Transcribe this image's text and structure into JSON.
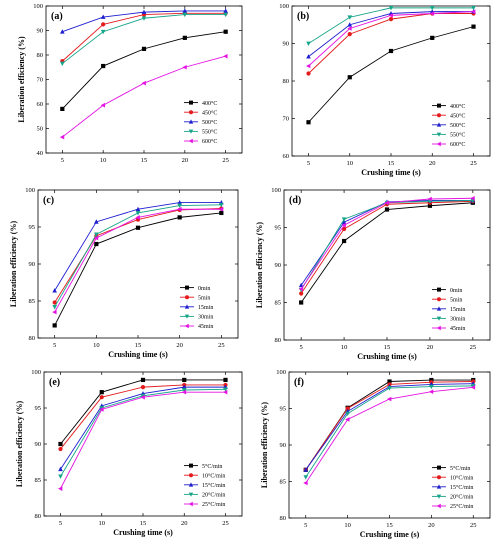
{
  "chart_data": [
    {
      "type": "line",
      "panel_label": "(a)",
      "xlabel": "",
      "ylabel": "Liberation efficiency (%)",
      "x": [
        5,
        10,
        15,
        20,
        25
      ],
      "xlim": [
        3,
        27
      ],
      "xticks": [
        5,
        10,
        15,
        20,
        25
      ],
      "ylim": [
        40,
        100
      ],
      "yticks": [
        40,
        50,
        60,
        70,
        80,
        90,
        100
      ],
      "legend_position": "bottom-right",
      "series": [
        {
          "name": "400°C",
          "color": "#000000",
          "marker": "square",
          "values": [
            58,
            75.5,
            82.5,
            87,
            89.5
          ]
        },
        {
          "name": "450°C",
          "color": "#e41a1c",
          "marker": "circle",
          "values": [
            77.5,
            92.5,
            96.5,
            97,
            97
          ]
        },
        {
          "name": "500°C",
          "color": "#1f1fd1",
          "marker": "triangle-up",
          "values": [
            89.5,
            95.5,
            97.5,
            98,
            98
          ]
        },
        {
          "name": "550°C",
          "color": "#17a589",
          "marker": "triangle-down",
          "values": [
            76.5,
            89.5,
            95,
            96.5,
            96.5
          ]
        },
        {
          "name": "600°C",
          "color": "#e413e4",
          "marker": "triangle-left",
          "values": [
            46.5,
            59.5,
            68.5,
            75,
            79.5
          ]
        }
      ]
    },
    {
      "type": "line",
      "panel_label": "(b)",
      "xlabel": "Crushing time (s)",
      "ylabel": "",
      "x": [
        5,
        10,
        15,
        20,
        25
      ],
      "xlim": [
        3,
        27
      ],
      "xticks": [
        5,
        10,
        15,
        20,
        25
      ],
      "ylim": [
        60,
        100
      ],
      "yticks": [
        60,
        70,
        80,
        90,
        100
      ],
      "legend_position": "bottom-right",
      "series": [
        {
          "name": "400°C",
          "color": "#000000",
          "marker": "square",
          "values": [
            69,
            81,
            88,
            91.5,
            94.5
          ]
        },
        {
          "name": "450°C",
          "color": "#e41a1c",
          "marker": "circle",
          "values": [
            82,
            92.5,
            96.5,
            98,
            98
          ]
        },
        {
          "name": "500°C",
          "color": "#1f1fd1",
          "marker": "triangle-up",
          "values": [
            86.5,
            95,
            98,
            98.5,
            98.5
          ]
        },
        {
          "name": "550°C",
          "color": "#17a589",
          "marker": "triangle-down",
          "values": [
            90,
            97,
            99.5,
            99.5,
            99.5
          ]
        },
        {
          "name": "600°C",
          "color": "#e413e4",
          "marker": "triangle-left",
          "values": [
            84,
            94,
            97.5,
            98,
            98.5
          ]
        }
      ]
    },
    {
      "type": "line",
      "panel_label": "(c)",
      "xlabel": "Crushing time (s)",
      "ylabel": "Liberation efficiency (%)",
      "x": [
        5,
        10,
        15,
        20,
        25
      ],
      "xlim": [
        3,
        27
      ],
      "xticks": [
        5,
        10,
        15,
        20,
        25
      ],
      "ylim": [
        80,
        100
      ],
      "yticks": [
        80,
        85,
        90,
        95,
        100
      ],
      "legend_position": "bottom-right",
      "series": [
        {
          "name": "0min",
          "color": "#000000",
          "marker": "square",
          "values": [
            81.7,
            92.7,
            94.9,
            96.3,
            96.9
          ]
        },
        {
          "name": "5min",
          "color": "#e41a1c",
          "marker": "circle",
          "values": [
            84.8,
            93.8,
            96.0,
            97.3,
            97.5
          ]
        },
        {
          "name": "15min",
          "color": "#1f1fd1",
          "marker": "triangle-up",
          "values": [
            86.4,
            95.7,
            97.4,
            98.3,
            98.3
          ]
        },
        {
          "name": "30min",
          "color": "#17a589",
          "marker": "triangle-down",
          "values": [
            84.2,
            94.0,
            96.9,
            97.9,
            98.0
          ]
        },
        {
          "name": "45min",
          "color": "#e413e4",
          "marker": "triangle-left",
          "values": [
            83.5,
            93.5,
            96.3,
            97.4,
            97.4
          ]
        }
      ]
    },
    {
      "type": "line",
      "panel_label": "(d)",
      "xlabel": "Crushing time (s)",
      "ylabel": "Liberation efficiency (%)",
      "x": [
        5,
        10,
        15,
        20,
        25
      ],
      "xlim": [
        3,
        27
      ],
      "xticks": [
        5,
        10,
        15,
        20,
        25
      ],
      "ylim": [
        80,
        100
      ],
      "yticks": [
        80,
        85,
        90,
        95,
        100
      ],
      "legend_position": "bottom-right",
      "series": [
        {
          "name": "0min",
          "color": "#000000",
          "marker": "square",
          "values": [
            85.0,
            93.2,
            97.4,
            97.9,
            98.3
          ]
        },
        {
          "name": "5min",
          "color": "#e41a1c",
          "marker": "circle",
          "values": [
            86.2,
            94.8,
            98.1,
            98.3,
            98.5
          ]
        },
        {
          "name": "15min",
          "color": "#1f1fd1",
          "marker": "triangle-up",
          "values": [
            87.3,
            95.7,
            98.4,
            98.6,
            98.6
          ]
        },
        {
          "name": "30min",
          "color": "#17a589",
          "marker": "triangle-down",
          "values": [
            86.7,
            96.1,
            98.3,
            98.5,
            98.6
          ]
        },
        {
          "name": "45min",
          "color": "#e413e4",
          "marker": "triangle-left",
          "values": [
            86.8,
            95.3,
            98.3,
            98.8,
            98.9
          ]
        }
      ]
    },
    {
      "type": "line",
      "panel_label": "(e)",
      "xlabel": "Crushing time (s)",
      "ylabel": "Liberation efficiency (%)",
      "x": [
        5,
        10,
        15,
        20,
        25
      ],
      "xlim": [
        3,
        27
      ],
      "xticks": [
        5,
        10,
        15,
        20,
        25
      ],
      "ylim": [
        80,
        100
      ],
      "yticks": [
        80,
        85,
        90,
        95,
        100
      ],
      "legend_position": "bottom-right",
      "series": [
        {
          "name": "5°C/min",
          "color": "#000000",
          "marker": "square",
          "values": [
            90.0,
            97.2,
            98.9,
            98.9,
            98.9
          ]
        },
        {
          "name": "10°C/min",
          "color": "#e41a1c",
          "marker": "circle",
          "values": [
            89.3,
            96.5,
            97.9,
            98.2,
            98.2
          ]
        },
        {
          "name": "15°C/min",
          "color": "#1f1fd1",
          "marker": "triangle-up",
          "values": [
            86.5,
            95.3,
            97.0,
            97.9,
            97.9
          ]
        },
        {
          "name": "20°C/min",
          "color": "#17a589",
          "marker": "triangle-down",
          "values": [
            85.5,
            95.0,
            96.7,
            97.5,
            97.6
          ]
        },
        {
          "name": "25°C/min",
          "color": "#e413e4",
          "marker": "triangle-left",
          "values": [
            83.8,
            94.8,
            96.5,
            97.2,
            97.2
          ]
        }
      ]
    },
    {
      "type": "line",
      "panel_label": "(f)",
      "xlabel": "Crushing time (s)",
      "ylabel": "Liberation efficiency (%)",
      "x": [
        5,
        10,
        15,
        20,
        25
      ],
      "xlim": [
        3,
        27
      ],
      "xticks": [
        5,
        10,
        15,
        20,
        25
      ],
      "ylim": [
        80,
        100
      ],
      "yticks": [
        80,
        85,
        90,
        95,
        100
      ],
      "legend_position": "bottom-right",
      "series": [
        {
          "name": "5°C/min",
          "color": "#000000",
          "marker": "square",
          "values": [
            86.6,
            95.1,
            98.7,
            98.9,
            98.9
          ]
        },
        {
          "name": "10°C/min",
          "color": "#e41a1c",
          "marker": "circle",
          "values": [
            86.6,
            95.0,
            98.3,
            98.6,
            98.7
          ]
        },
        {
          "name": "15°C/min",
          "color": "#1f1fd1",
          "marker": "triangle-up",
          "values": [
            86.6,
            94.6,
            98.0,
            98.3,
            98.4
          ]
        },
        {
          "name": "20°C/min",
          "color": "#17a589",
          "marker": "triangle-down",
          "values": [
            85.6,
            94.3,
            97.8,
            98.0,
            98.1
          ]
        },
        {
          "name": "25°C/min",
          "color": "#e413e4",
          "marker": "triangle-left",
          "values": [
            84.8,
            93.5,
            96.3,
            97.3,
            97.9
          ]
        }
      ]
    }
  ]
}
